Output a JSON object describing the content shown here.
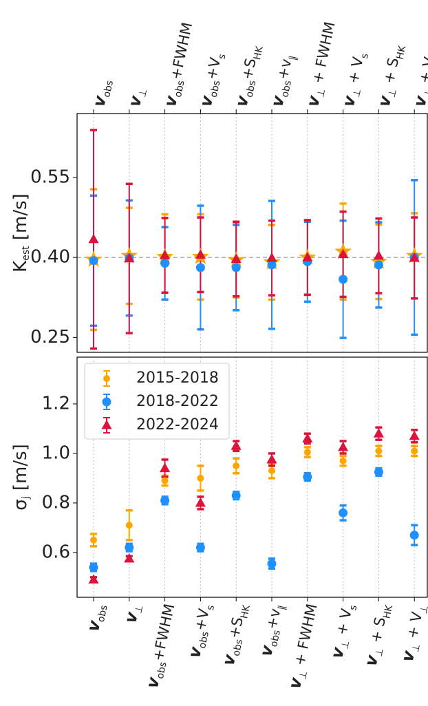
{
  "chart_data": [
    {
      "type": "errorbar",
      "ylabel": [
        {
          "text": "K",
          "sub": "est"
        },
        {
          "text": " [m/s]"
        }
      ],
      "categories": [
        [
          {
            "text": "v",
            "sub": "obs"
          }
        ],
        [
          {
            "text": "v",
            "sub": "⊥"
          }
        ],
        [
          {
            "text": "v",
            "sub": "obs"
          },
          {
            "text": "+FWHM"
          }
        ],
        [
          {
            "text": "v",
            "sub": "obs"
          },
          {
            "text": "+V",
            "sub": "s"
          }
        ],
        [
          {
            "text": "v",
            "sub": "obs"
          },
          {
            "text": "+S",
            "sub": "HK"
          }
        ],
        [
          {
            "text": "v",
            "sub": "obs"
          },
          {
            "text": "+v",
            "sub": "∥"
          }
        ],
        [
          {
            "text": "v",
            "sub": "⊥"
          },
          {
            "text": " + FWHM"
          }
        ],
        [
          {
            "text": "v",
            "sub": "⊥"
          },
          {
            "text": " + V",
            "sub": "s"
          }
        ],
        [
          {
            "text": "v",
            "sub": "⊥"
          },
          {
            "text": " + S",
            "sub": "HK"
          }
        ],
        [
          {
            "text": "v",
            "sub": "⊥"
          },
          {
            "text": " + V",
            "sub": "⊥"
          }
        ]
      ],
      "series": [
        {
          "color": "#FFA500",
          "marker": "star",
          "values": [
            0.396,
            0.403,
            0.401,
            0.401,
            0.395,
            0.391,
            0.4,
            0.411,
            0.392,
            0.403
          ],
          "errors": [
            0.132,
            0.09,
            0.08,
            0.08,
            0.07,
            0.07,
            0.07,
            0.09,
            0.07,
            0.08
          ]
        },
        {
          "color": "#1E90FF",
          "marker": "circle",
          "values": [
            0.394,
            0.399,
            0.389,
            0.381,
            0.381,
            0.386,
            0.392,
            0.359,
            0.386,
            0.4
          ],
          "errors": [
            0.122,
            0.108,
            0.068,
            0.116,
            0.08,
            0.12,
            0.075,
            0.11,
            0.08,
            0.145
          ]
        },
        {
          "color": "#DC143C",
          "marker": "triangle",
          "values": [
            0.434,
            0.398,
            0.404,
            0.405,
            0.397,
            0.399,
            0.4,
            0.406,
            0.403,
            0.399
          ],
          "errors": [
            0.205,
            0.14,
            0.07,
            0.07,
            0.07,
            0.07,
            0.07,
            0.08,
            0.07,
            0.076
          ]
        }
      ],
      "reference_line": 0.4,
      "ylim": [
        0.222,
        0.67
      ],
      "yticks": [
        0.25,
        {
          "value": 0.4,
          "label": "0.40"
        },
        0.55
      ],
      "grid": true
    },
    {
      "type": "errorbar",
      "ylabel": [
        {
          "text": "σ",
          "sub": "j"
        },
        {
          "text": " [m/s]"
        }
      ],
      "categories": [
        [
          {
            "text": "v",
            "sub": "obs"
          }
        ],
        [
          {
            "text": "v",
            "sub": "⊥"
          }
        ],
        [
          {
            "text": "v",
            "sub": "obs"
          },
          {
            "text": "+FWHM"
          }
        ],
        [
          {
            "text": "v",
            "sub": "obs"
          },
          {
            "text": "+V",
            "sub": "s"
          }
        ],
        [
          {
            "text": "v",
            "sub": "obs"
          },
          {
            "text": "+S",
            "sub": "HK"
          }
        ],
        [
          {
            "text": "v",
            "sub": "obs"
          },
          {
            "text": "+v",
            "sub": "∥"
          }
        ],
        [
          {
            "text": "v",
            "sub": "⊥"
          },
          {
            "text": " + FWHM"
          }
        ],
        [
          {
            "text": "v",
            "sub": "⊥"
          },
          {
            "text": " + V",
            "sub": "s"
          }
        ],
        [
          {
            "text": "v",
            "sub": "⊥"
          },
          {
            "text": " + S",
            "sub": "HK"
          }
        ],
        [
          {
            "text": "v",
            "sub": "⊥"
          },
          {
            "text": " + V",
            "sub": "⊥"
          }
        ]
      ],
      "series": [
        {
          "name": "2015-2018",
          "color": "#FFA500",
          "marker": "smallcircle",
          "values": [
            0.65,
            0.71,
            0.89,
            0.9,
            0.95,
            0.93,
            1.005,
            0.97,
            1.01,
            1.01
          ],
          "errors": [
            0.025,
            0.06,
            0.02,
            0.05,
            0.03,
            0.03,
            0.02,
            0.02,
            0.02,
            0.02
          ]
        },
        {
          "name": "2018-2022",
          "color": "#1E90FF",
          "marker": "circle",
          "values": [
            0.54,
            0.62,
            0.81,
            0.62,
            0.83,
            0.555,
            0.905,
            0.76,
            0.925,
            0.67
          ],
          "errors": [
            0.015,
            0.015,
            0.015,
            0.015,
            0.015,
            0.02,
            0.015,
            0.03,
            0.015,
            0.04
          ]
        },
        {
          "name": "2022-2024",
          "color": "#DC143C",
          "marker": "triangle",
          "values": [
            0.49,
            0.575,
            0.94,
            0.8,
            1.03,
            0.975,
            1.06,
            1.025,
            1.08,
            1.07
          ],
          "errors": [
            0.01,
            0.01,
            0.035,
            0.025,
            0.02,
            0.025,
            0.02,
            0.025,
            0.025,
            0.025
          ]
        }
      ],
      "ylim": [
        0.419,
        1.389
      ],
      "yticks": [
        {
          "value": 0.6,
          "label": "0.6"
        },
        {
          "value": 0.8,
          "label": "0.8"
        },
        {
          "value": 1.0,
          "label": "1.0"
        },
        {
          "value": 1.2,
          "label": "1.2"
        }
      ],
      "grid": true,
      "legend": "upper left"
    }
  ]
}
